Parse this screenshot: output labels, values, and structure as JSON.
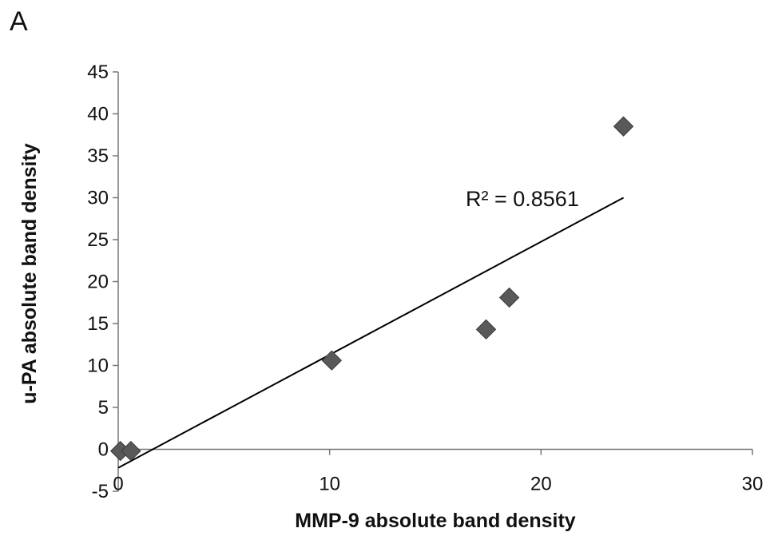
{
  "panel_label": "A",
  "chart_data": {
    "type": "scatter",
    "title": "",
    "xlabel": "MMP-9 absolute band density",
    "ylabel": "u-PA absolute band density",
    "xlim": [
      0,
      30
    ],
    "ylim": [
      -5,
      45
    ],
    "xticks": [
      0,
      10,
      20,
      30
    ],
    "yticks": [
      -5,
      0,
      5,
      10,
      15,
      20,
      25,
      30,
      35,
      40,
      45
    ],
    "grid": false,
    "marker": "diamond",
    "marker_color": "#595959",
    "points": [
      {
        "x": 0.1,
        "y": -0.2
      },
      {
        "x": 0.6,
        "y": -0.2
      },
      {
        "x": 10.1,
        "y": 10.6
      },
      {
        "x": 17.4,
        "y": 14.3
      },
      {
        "x": 18.5,
        "y": 18.1
      },
      {
        "x": 23.9,
        "y": 38.5
      }
    ],
    "trendline": {
      "type": "linear",
      "from": {
        "x": 0,
        "y": -2.2
      },
      "to": {
        "x": 23.9,
        "y": 30.0
      },
      "label": "R² = 0.8561"
    }
  }
}
